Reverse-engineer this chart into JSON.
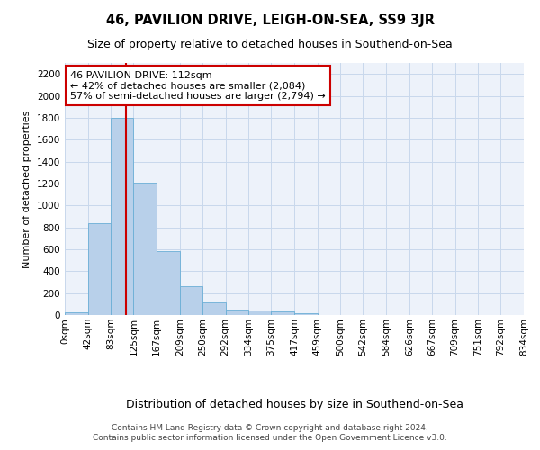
{
  "title": "46, PAVILION DRIVE, LEIGH-ON-SEA, SS9 3JR",
  "subtitle": "Size of property relative to detached houses in Southend-on-Sea",
  "xlabel": "Distribution of detached houses by size in Southend-on-Sea",
  "ylabel": "Number of detached properties",
  "bar_values": [
    25,
    840,
    1800,
    1210,
    585,
    260,
    115,
    50,
    45,
    30,
    15,
    0,
    0,
    0,
    0,
    0,
    0,
    0,
    0,
    0
  ],
  "bin_edges": [
    0,
    42,
    83,
    125,
    167,
    209,
    250,
    292,
    334,
    375,
    417,
    459,
    500,
    542,
    584,
    626,
    667,
    709,
    751,
    792,
    834
  ],
  "tick_labels": [
    "0sqm",
    "42sqm",
    "83sqm",
    "125sqm",
    "167sqm",
    "209sqm",
    "250sqm",
    "292sqm",
    "334sqm",
    "375sqm",
    "417sqm",
    "459sqm",
    "500sqm",
    "542sqm",
    "584sqm",
    "626sqm",
    "667sqm",
    "709sqm",
    "751sqm",
    "792sqm",
    "834sqm"
  ],
  "bar_color": "#b8d0ea",
  "bar_edge_color": "#6aaed6",
  "grid_color": "#c8d8ec",
  "vline_x": 112,
  "vline_color": "#cc0000",
  "annotation_text": "46 PAVILION DRIVE: 112sqm\n← 42% of detached houses are smaller (2,084)\n57% of semi-detached houses are larger (2,794) →",
  "annotation_box_color": "#cc0000",
  "ylim": [
    0,
    2300
  ],
  "yticks": [
    0,
    200,
    400,
    600,
    800,
    1000,
    1200,
    1400,
    1600,
    1800,
    2000,
    2200
  ],
  "footer_line1": "Contains HM Land Registry data © Crown copyright and database right 2024.",
  "footer_line2": "Contains public sector information licensed under the Open Government Licence v3.0.",
  "bg_color": "#edf2fa",
  "title_fontsize": 10.5,
  "subtitle_fontsize": 9,
  "ylabel_fontsize": 8,
  "xlabel_fontsize": 9,
  "tick_fontsize": 7.5,
  "annotation_fontsize": 8,
  "footer_fontsize": 6.5
}
